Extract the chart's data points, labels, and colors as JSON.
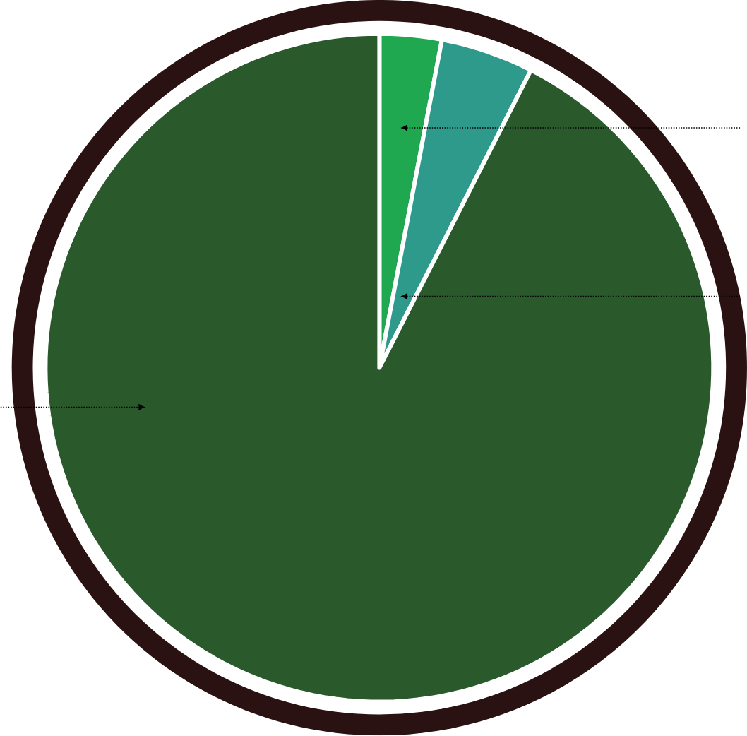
{
  "chart_data": {
    "type": "pie",
    "categories": [
      null,
      null,
      null
    ],
    "values": [
      3,
      4.5,
      92.5
    ],
    "colors": [
      "#1fa84f",
      "#2e9a8c",
      "#2a5a2c"
    ]
  }
}
